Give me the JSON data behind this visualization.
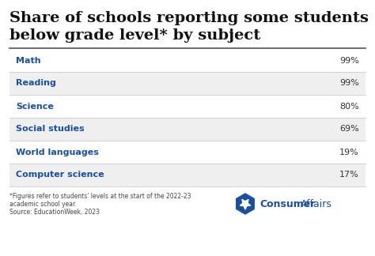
{
  "title_line1": "Share of schools reporting some students",
  "title_line2": "below grade level* by subject",
  "categories": [
    "Math",
    "Reading",
    "Science",
    "Social studies",
    "World languages",
    "Computer science"
  ],
  "values": [
    "99%",
    "99%",
    "80%",
    "69%",
    "19%",
    "17%"
  ],
  "category_color": "#1a4fa0",
  "value_color": "#333333",
  "title_color": "#111111",
  "bg_color": "#ffffff",
  "row_bg_colors": [
    "#ffffff",
    "#efefef",
    "#ffffff",
    "#efefef",
    "#ffffff",
    "#efefef"
  ],
  "footnote1": "*Figures refer to students' levels at the start of the 2022-23",
  "footnote2": "academic school year.",
  "footnote3": "Source: EducationWeek, 2023",
  "logo_text_bold": "Consumer",
  "logo_text_regular": "Affairs",
  "logo_color": "#1a4fa0",
  "separator_color": "#555555",
  "row_separator_color": "#cccccc"
}
